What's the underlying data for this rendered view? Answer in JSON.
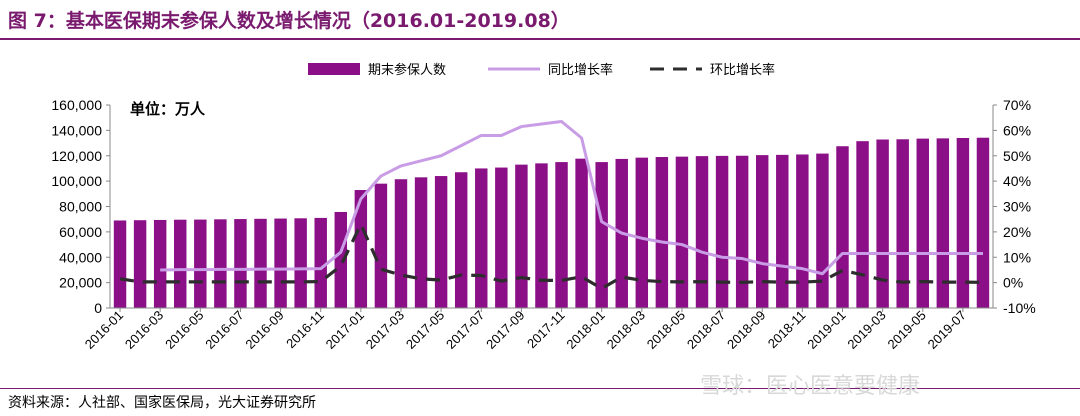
{
  "header": {
    "title": "图 7：基本医保期末参保人数及增长情况（2016.01-2019.08）"
  },
  "footer": {
    "source": "资料来源：人社部、国家医保局，光大证券研究所",
    "watermark": "雪球：医心医意要健康"
  },
  "chart_data": {
    "type": "bar",
    "unit_label": "单位：万人",
    "x_tick_labels": [
      "2016-01",
      "2016-03",
      "2016-05",
      "2016-07",
      "2016-09",
      "2016-11",
      "2017-01",
      "2017-03",
      "2017-05",
      "2017-07",
      "2017-09",
      "2017-11",
      "2018-01",
      "2018-03",
      "2018-05",
      "2018-07",
      "2018-09",
      "2018-11",
      "2019-01",
      "2019-03",
      "2019-05",
      "2019-07"
    ],
    "categories": [
      "2016-01",
      "2016-02",
      "2016-03",
      "2016-04",
      "2016-05",
      "2016-06",
      "2016-07",
      "2016-08",
      "2016-09",
      "2016-10",
      "2016-11",
      "2016-12",
      "2017-01",
      "2017-02",
      "2017-03",
      "2017-04",
      "2017-05",
      "2017-06",
      "2017-07",
      "2017-08",
      "2017-09",
      "2017-10",
      "2017-11",
      "2017-12",
      "2018-01",
      "2018-02",
      "2018-03",
      "2018-04",
      "2018-05",
      "2018-06",
      "2018-07",
      "2018-08",
      "2018-09",
      "2018-10",
      "2018-11",
      "2018-12",
      "2019-01",
      "2019-02",
      "2019-03",
      "2019-04",
      "2019-05",
      "2019-06",
      "2019-07",
      "2019-08"
    ],
    "left_axis": {
      "ylim": [
        0,
        160000
      ],
      "ticks": [
        0,
        20000,
        40000,
        60000,
        80000,
        100000,
        120000,
        140000,
        160000
      ],
      "tick_labels": [
        "0",
        "20,000",
        "40,000",
        "60,000",
        "80,000",
        "100,000",
        "120,000",
        "140,000",
        "160,000"
      ]
    },
    "right_axis": {
      "ylim": [
        -10,
        70
      ],
      "ticks": [
        -10,
        0,
        10,
        20,
        30,
        40,
        50,
        60,
        70
      ],
      "tick_labels": [
        "-10%",
        "0%",
        "10%",
        "20%",
        "30%",
        "40%",
        "50%",
        "60%",
        "70%"
      ]
    },
    "legend_position": "top",
    "grid": false,
    "series": [
      {
        "name": "期末参保人数",
        "type": "bar",
        "axis": "left",
        "color": "#8b0f86",
        "values": [
          69000,
          69200,
          69400,
          69600,
          69700,
          69900,
          70100,
          70300,
          70500,
          70700,
          71000,
          75700,
          93000,
          98000,
          101500,
          103000,
          104000,
          107000,
          110000,
          110700,
          113000,
          114000,
          115000,
          117700,
          115000,
          117500,
          118500,
          119000,
          119300,
          119700,
          119900,
          120000,
          120500,
          120700,
          121000,
          121700,
          127500,
          131500,
          132800,
          133000,
          133500,
          133700,
          134000,
          134200
        ]
      },
      {
        "name": "同比增长率",
        "type": "line",
        "axis": "right",
        "color": "#c99de6",
        "values": [
          null,
          null,
          5.0,
          5.1,
          5.1,
          5.2,
          5.2,
          5.3,
          5.3,
          5.4,
          5.5,
          12.0,
          33.0,
          42.0,
          46.0,
          48.0,
          50.0,
          54.0,
          58.0,
          58.0,
          61.5,
          62.5,
          63.5,
          57.0,
          24.0,
          19.5,
          17.5,
          16.0,
          15.0,
          12.0,
          10.0,
          9.5,
          7.5,
          6.5,
          5.5,
          3.5,
          11.5,
          11.5,
          11.5,
          11.5,
          11.5,
          11.5,
          11.5,
          11.5
        ]
      },
      {
        "name": "环比增长率",
        "type": "line",
        "axis": "right",
        "color": "#2d2d2d",
        "dashed": true,
        "values": [
          1.5,
          0.3,
          0.3,
          0.3,
          0.3,
          0.3,
          0.3,
          0.3,
          0.3,
          0.3,
          0.4,
          6.6,
          23.0,
          5.3,
          3.0,
          1.5,
          1.0,
          3.0,
          2.8,
          0.6,
          2.0,
          0.9,
          0.9,
          2.3,
          -2.3,
          2.2,
          0.9,
          0.4,
          0.3,
          0.4,
          0.2,
          0.1,
          0.4,
          0.2,
          0.2,
          0.6,
          4.8,
          3.1,
          1.0,
          0.2,
          0.4,
          0.2,
          0.2,
          0.1
        ]
      }
    ]
  }
}
